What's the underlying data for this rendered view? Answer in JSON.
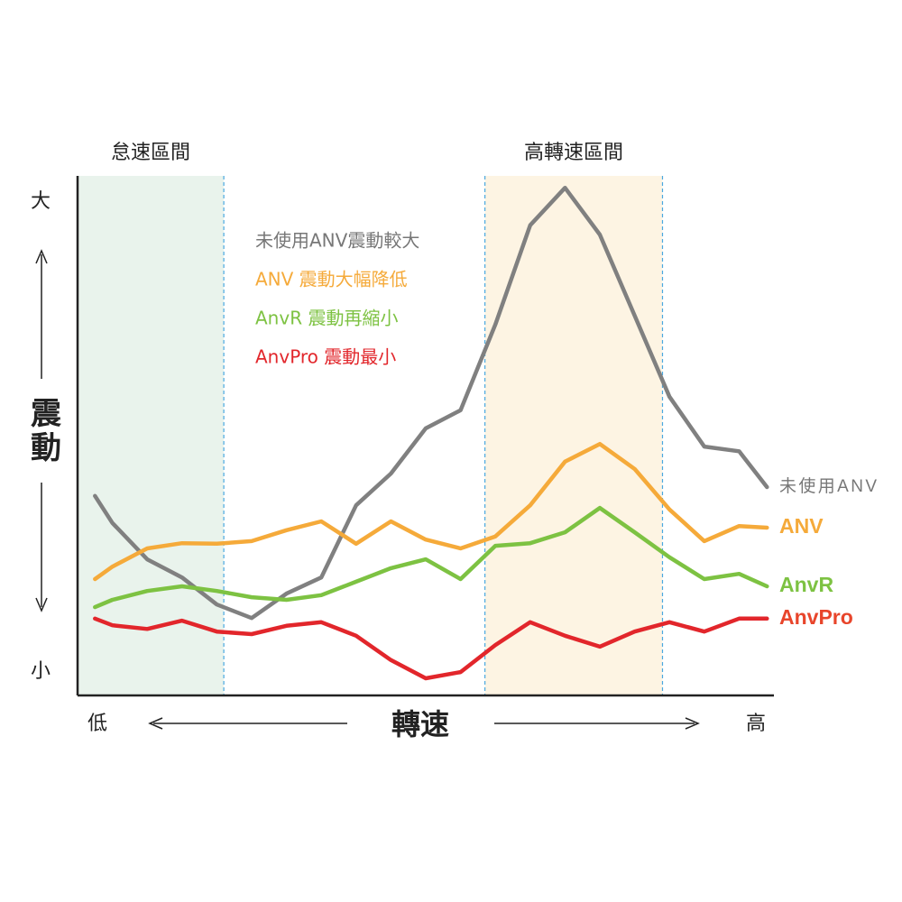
{
  "chart_data": {
    "type": "line",
    "ylabel": "震動",
    "xlabel": "轉速",
    "xlim": [
      0,
      100
    ],
    "ylim": [
      0,
      100
    ],
    "xticks": [
      {
        "value": 0,
        "label": "低"
      },
      {
        "value": 100,
        "label": "高"
      }
    ],
    "yticks": [
      {
        "value": 4.5,
        "label": "小"
      },
      {
        "value": 95,
        "label": "大"
      }
    ],
    "regions": [
      {
        "label": "怠速區間",
        "from": 0,
        "to": 21,
        "color": "#e9f3ec"
      },
      {
        "label": "高轉速區間",
        "from": 58.5,
        "to": 84,
        "color": "#fdf4e3"
      }
    ],
    "x": [
      2.5,
      5,
      10,
      15,
      20,
      25,
      30,
      35,
      40,
      45,
      50,
      55,
      60,
      65,
      70,
      75,
      80,
      85,
      90,
      95,
      99
    ],
    "series": [
      {
        "name": "未使用ANV",
        "note": "未使用ANV震動較大",
        "color": "#808080",
        "values": [
          38.4,
          33.2,
          26.2,
          22.7,
          17.5,
          14.9,
          19.6,
          22.7,
          36.6,
          42.7,
          51.4,
          54.9,
          71.4,
          90.5,
          97.7,
          88.7,
          73.1,
          57.5,
          47.9,
          47.0,
          40.1
        ]
      },
      {
        "name": "ANV",
        "note": "ANV 震動大幅降低",
        "color": "#f5aa3a",
        "values": [
          22.4,
          24.8,
          28.3,
          29.3,
          29.2,
          29.7,
          31.8,
          33.5,
          29.2,
          33.5,
          30.0,
          28.3,
          30.6,
          36.6,
          45.0,
          48.4,
          43.6,
          35.8,
          29.7,
          32.6,
          32.3
        ]
      },
      {
        "name": "AnvR",
        "note": "AnvR 震動再縮小",
        "color": "#7dc242",
        "values": [
          17.0,
          18.4,
          20.1,
          21.0,
          20.1,
          18.9,
          18.4,
          19.3,
          21.9,
          24.5,
          26.2,
          22.4,
          28.8,
          29.3,
          31.4,
          36.1,
          31.4,
          26.6,
          22.4,
          23.4,
          21.0
        ]
      },
      {
        "name": "AnvPro",
        "note": "AnvPro 震動最小",
        "color": "#e2262b",
        "values": [
          14.8,
          13.5,
          12.8,
          14.4,
          12.3,
          11.8,
          13.4,
          14.1,
          11.5,
          6.8,
          3.3,
          4.5,
          9.7,
          14.1,
          11.5,
          9.4,
          12.3,
          14.1,
          12.3,
          14.8,
          14.8
        ]
      }
    ]
  }
}
